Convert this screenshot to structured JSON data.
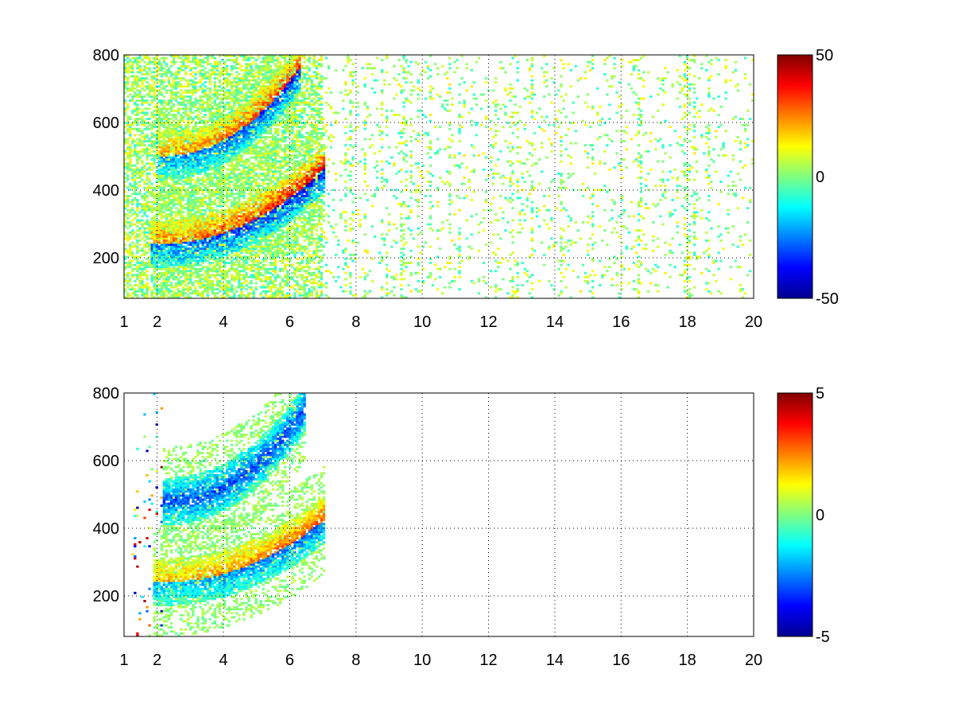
{
  "chart_data": [
    {
      "type": "heatmap",
      "title": "",
      "xlabel": "",
      "ylabel": "",
      "xlim": [
        1,
        20
      ],
      "ylim": [
        80,
        800
      ],
      "x_ticks": [
        "1",
        "2",
        "4",
        "6",
        "8",
        "10",
        "12",
        "14",
        "16",
        "18",
        "20"
      ],
      "x_tick_values": [
        1,
        2,
        4,
        6,
        8,
        10,
        12,
        14,
        16,
        18,
        20
      ],
      "y_ticks": [
        "200",
        "400",
        "600",
        "800"
      ],
      "y_tick_values": [
        200,
        400,
        600,
        800
      ],
      "grid": true,
      "colormap": "jet",
      "color_range": [
        -50,
        50
      ],
      "colorbar_ticks": [
        "50",
        "0",
        "-50"
      ],
      "colorbar_tick_values": [
        50,
        0,
        -50
      ],
      "features": [
        {
          "kind": "band",
          "x_range": [
            1.8,
            7.1
          ],
          "y_start": 240,
          "y_end": 470,
          "sign": "mixed",
          "value": 40
        },
        {
          "kind": "band",
          "x_range": [
            2.0,
            6.3
          ],
          "y_start": 500,
          "y_end": 760,
          "sign": "mixed",
          "value": 35
        },
        {
          "kind": "sparse_noise",
          "x_range": [
            1,
            20
          ],
          "value_range": [
            -10,
            15
          ]
        }
      ]
    },
    {
      "type": "heatmap",
      "title": "",
      "xlabel": "",
      "ylabel": "",
      "xlim": [
        1,
        20
      ],
      "ylim": [
        80,
        800
      ],
      "x_ticks": [
        "1",
        "2",
        "4",
        "6",
        "8",
        "10",
        "12",
        "14",
        "16",
        "18",
        "20"
      ],
      "x_tick_values": [
        1,
        2,
        4,
        6,
        8,
        10,
        12,
        14,
        16,
        18,
        20
      ],
      "y_ticks": [
        "200",
        "400",
        "600",
        "800"
      ],
      "y_tick_values": [
        200,
        400,
        600,
        800
      ],
      "grid": true,
      "colormap": "jet",
      "color_range": [
        -5,
        5
      ],
      "colorbar_ticks": [
        "5",
        "0",
        "-5"
      ],
      "colorbar_tick_values": [
        5,
        0,
        -5
      ],
      "features": [
        {
          "kind": "band",
          "x_range": [
            1.9,
            7.1
          ],
          "y_start": 240,
          "y_end": 430,
          "sign": "mixed",
          "value": 3
        },
        {
          "kind": "band",
          "x_range": [
            2.2,
            6.5
          ],
          "y_start": 480,
          "y_end": 760,
          "sign": "negative",
          "value": -3
        },
        {
          "kind": "sparse_noise",
          "x_range": [
            1.2,
            2.2
          ],
          "value_range": [
            -5,
            5
          ]
        }
      ]
    }
  ]
}
